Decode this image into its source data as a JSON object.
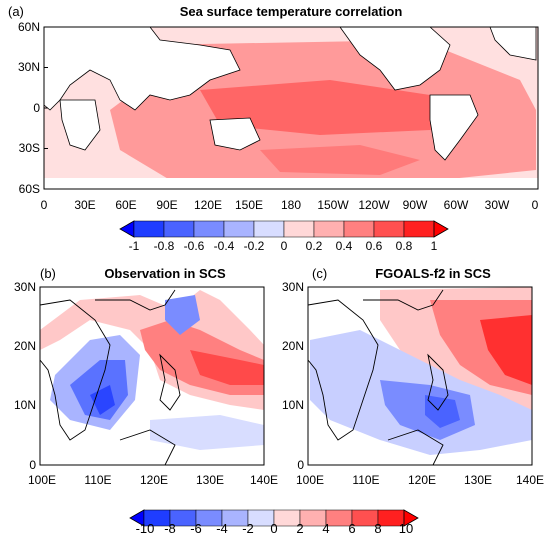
{
  "panel_a": {
    "label": "(a)",
    "title": "Sea surface temperature correlation",
    "lat_ticks": [
      "60N",
      "30N",
      "0",
      "30S",
      "60S"
    ],
    "lon_ticks": [
      "0",
      "30E",
      "60E",
      "90E",
      "120E",
      "150E",
      "180",
      "150W",
      "120W",
      "90W",
      "60W",
      "30W",
      "0"
    ],
    "colorbar_ticks": [
      "-1",
      "-0.8",
      "-0.6",
      "-0.4",
      "-0.2",
      "0",
      "0.2",
      "0.4",
      "0.6",
      "0.8",
      "1"
    ]
  },
  "panel_b": {
    "label": "(b)",
    "title": "Observation in SCS",
    "lat_ticks": [
      "30N",
      "20N",
      "10N",
      "0"
    ],
    "lon_ticks": [
      "100E",
      "110E",
      "120E",
      "130E",
      "140E"
    ]
  },
  "panel_c": {
    "label": "(c)",
    "title": "FGOALS-f2 in SCS",
    "lat_ticks": [
      "30N",
      "20N",
      "10N",
      "0"
    ],
    "lon_ticks": [
      "100E",
      "110E",
      "120E",
      "130E",
      "140E"
    ]
  },
  "bottom_colorbar": {
    "ticks": [
      "-10",
      "-8",
      "-6",
      "-4",
      "-2",
      "0",
      "2",
      "4",
      "6",
      "8",
      "10"
    ]
  },
  "colors": {
    "strong_blue": "#1f3dff",
    "mid_blue": "#7a8cff",
    "light_blue": "#c8cfff",
    "white": "#ffffff",
    "light_red": "#ffc8c8",
    "mid_red": "#ff8080",
    "strong_red": "#ff1a1a"
  }
}
